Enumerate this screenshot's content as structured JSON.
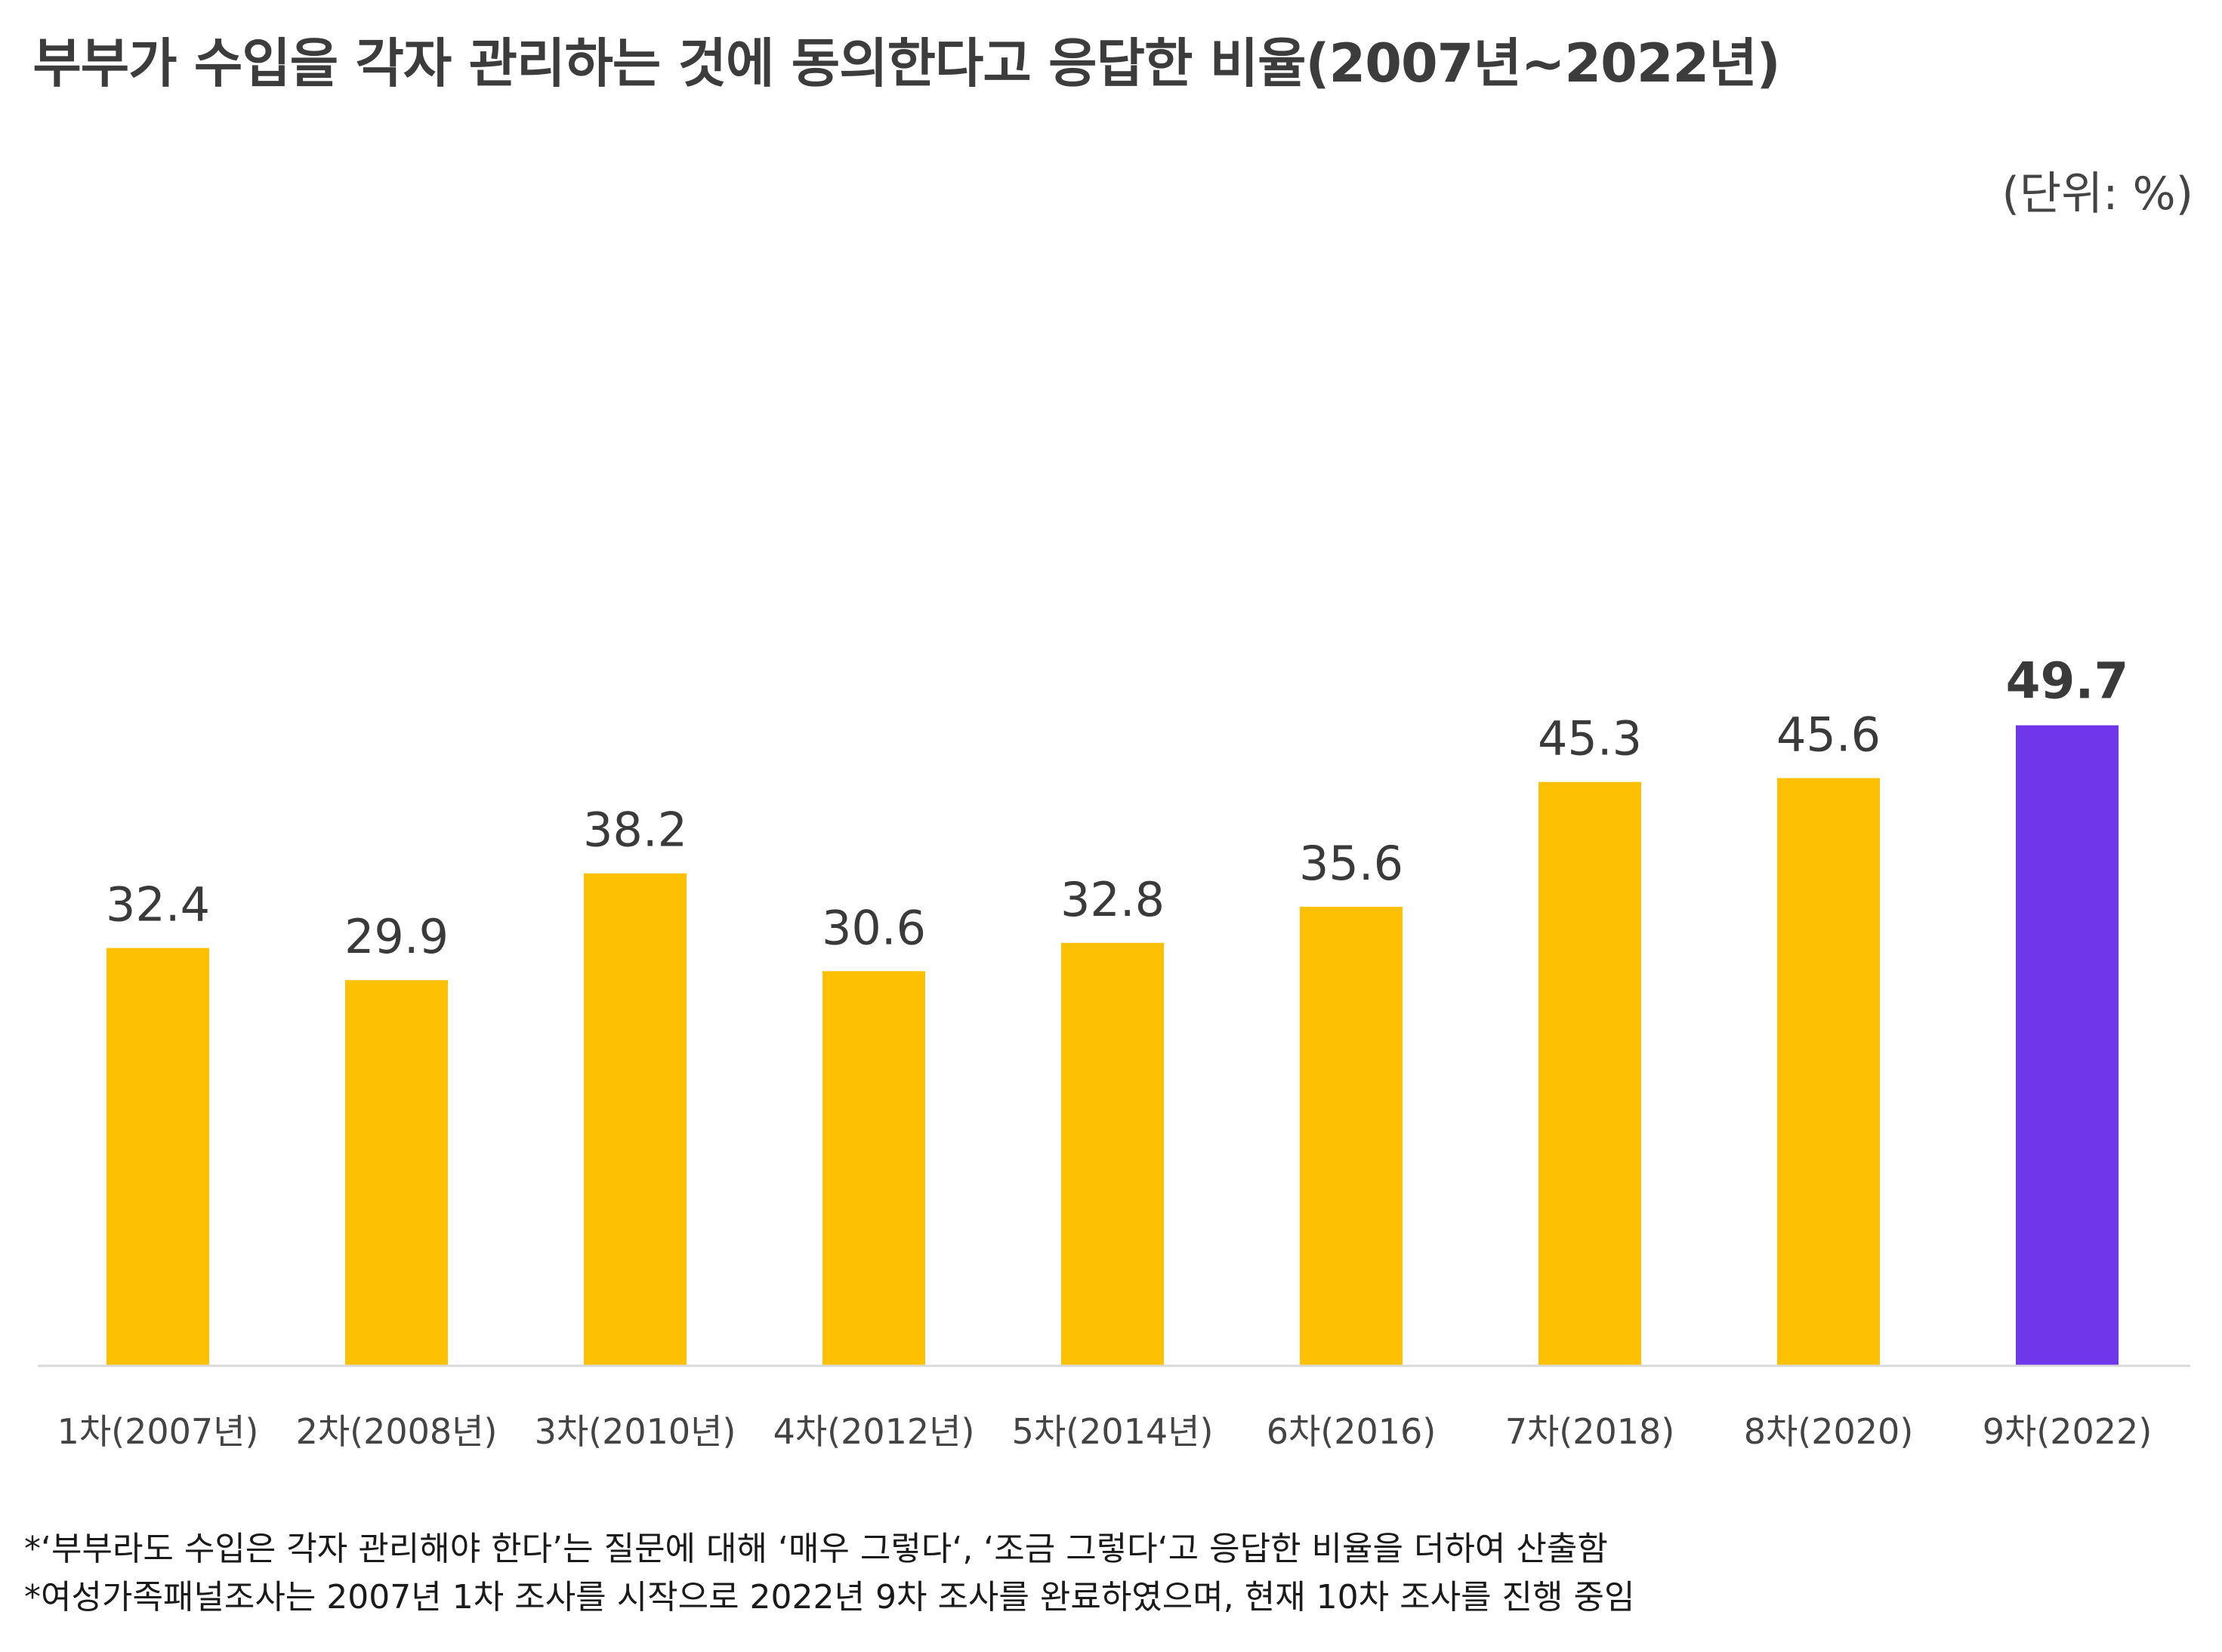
{
  "title": "부부가 수입을 각자 관리하는 것에 동의한다고 응답한 비율(2007년~2022년)",
  "unit_label": "(단위: %)",
  "colors": {
    "bar": "#FDC003",
    "highlight_bar": "#7036EA",
    "baseline": "#d9d9d9",
    "text": "#3a3a3a"
  },
  "chart_data": {
    "type": "bar",
    "categories": [
      "1차(2007년)",
      "2차(2008년)",
      "3차(2010년)",
      "4차(2012년)",
      "5차(2014년)",
      "6차(2016)",
      "7차(2018)",
      "8차(2020)",
      "9차(2022)"
    ],
    "values": [
      32.4,
      29.9,
      38.2,
      30.6,
      32.8,
      35.6,
      45.3,
      45.6,
      49.7
    ],
    "value_labels": [
      "32.4",
      "29.9",
      "38.2",
      "30.6",
      "32.8",
      "35.6",
      "45.3",
      "45.6",
      "49.7"
    ],
    "highlight_index": 8,
    "ylim": [
      0,
      50
    ],
    "grid": false,
    "legend": "none"
  },
  "footnotes": [
    "*‘부부라도 수입은 각자 관리해야 한다’는 질문에 대해 ‘매우 그렇다‘, ‘조금 그렇다‘고 응답한 비율을 더하여 산출함",
    "*여성가족패널조사는 2007년 1차 조사를 시작으로 2022년 9차 조사를 완료하였으며, 현재 10차 조사를 진행 중임"
  ]
}
